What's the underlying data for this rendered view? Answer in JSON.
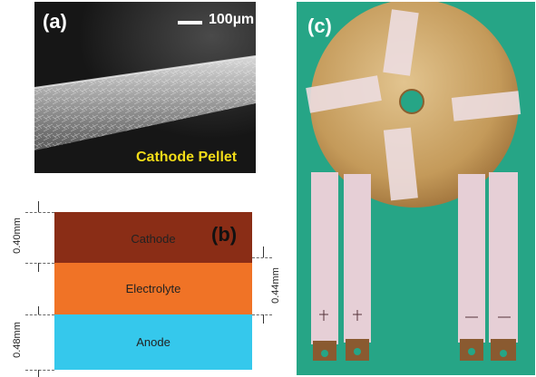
{
  "panel_a": {
    "label": "(a)",
    "scale_text": "100µm",
    "caption": "Cathode Pellet",
    "caption_color": "#f2dc18"
  },
  "panel_b": {
    "label": "(b)",
    "layers": [
      {
        "name": "Cathode",
        "color": "#8a2d16"
      },
      {
        "name": "Electrolyte",
        "color": "#f07326"
      },
      {
        "name": "Anode",
        "color": "#35c8ec"
      }
    ],
    "dimensions": {
      "cathode": "0.40mm",
      "electrolyte": "0.44mm",
      "anode": "0.48mm"
    }
  },
  "panel_c": {
    "label": "(c)",
    "background_color": "#26a586",
    "disc_color": "#c49a5a"
  }
}
